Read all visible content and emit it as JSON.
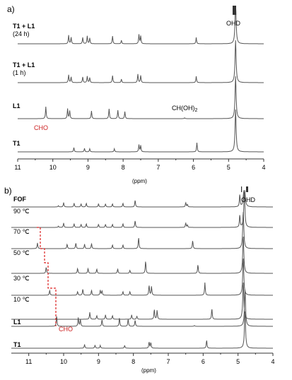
{
  "chart_data": [
    {
      "type": "line",
      "panel_label": "a)",
      "xlabel": "(ppm)",
      "xlim": [
        11,
        4
      ],
      "x_reversed": true,
      "xticks": [
        11,
        10,
        9,
        8,
        7,
        6,
        5,
        4
      ],
      "tick_labels": [
        "11",
        "10",
        "9",
        "8",
        "7",
        "6",
        "5",
        "4"
      ],
      "series": [
        {
          "name": "T1 + L1",
          "name2": "(24 h)",
          "baseline_note": "",
          "peaks": [
            {
              "x": 9.55,
              "h": 0.6
            },
            {
              "x": 9.48,
              "h": 0.45
            },
            {
              "x": 9.15,
              "h": 0.45
            },
            {
              "x": 9.02,
              "h": 0.55
            },
            {
              "x": 8.95,
              "h": 0.4
            },
            {
              "x": 8.3,
              "h": 0.55
            },
            {
              "x": 8.05,
              "h": 0.25
            },
            {
              "x": 7.55,
              "h": 0.65
            },
            {
              "x": 7.5,
              "h": 0.55
            },
            {
              "x": 5.92,
              "h": 0.45
            },
            {
              "x": 4.8,
              "h": 3.0
            }
          ]
        },
        {
          "name": "T1 + L1",
          "name2": "(1 h)",
          "peaks": [
            {
              "x": 9.55,
              "h": 0.55
            },
            {
              "x": 9.48,
              "h": 0.4
            },
            {
              "x": 9.15,
              "h": 0.4
            },
            {
              "x": 9.02,
              "h": 0.45
            },
            {
              "x": 8.95,
              "h": 0.35
            },
            {
              "x": 8.3,
              "h": 0.5
            },
            {
              "x": 8.05,
              "h": 0.25
            },
            {
              "x": 7.58,
              "h": 0.6
            },
            {
              "x": 7.5,
              "h": 0.5
            },
            {
              "x": 5.92,
              "h": 0.45
            },
            {
              "x": 4.8,
              "h": 3.0
            }
          ]
        },
        {
          "name": "L1",
          "name2": "",
          "peaks": [
            {
              "x": 10.2,
              "h": 0.85
            },
            {
              "x": 9.58,
              "h": 0.7
            },
            {
              "x": 9.52,
              "h": 0.55
            },
            {
              "x": 8.9,
              "h": 0.55
            },
            {
              "x": 8.4,
              "h": 0.7
            },
            {
              "x": 8.15,
              "h": 0.6
            },
            {
              "x": 7.95,
              "h": 0.5
            },
            {
              "x": 6.25,
              "h": 0.06
            },
            {
              "x": 4.8,
              "h": 3.0
            }
          ]
        },
        {
          "name": "T1",
          "name2": "",
          "peaks": [
            {
              "x": 9.4,
              "h": 0.3
            },
            {
              "x": 9.1,
              "h": 0.25
            },
            {
              "x": 8.95,
              "h": 0.22
            },
            {
              "x": 8.25,
              "h": 0.22
            },
            {
              "x": 7.55,
              "h": 0.5
            },
            {
              "x": 7.5,
              "h": 0.45
            },
            {
              "x": 5.9,
              "h": 0.65
            },
            {
              "x": 4.8,
              "h": 3.0
            }
          ]
        }
      ],
      "annotations": [
        {
          "text": "CHO",
          "color": "#cc2222"
        },
        {
          "text": "CH(OH)",
          "sub": "2"
        },
        {
          "text": "OHD"
        }
      ]
    },
    {
      "type": "line",
      "panel_label": "b)",
      "xlabel": "(ppm)",
      "xlim": [
        11.5,
        4
      ],
      "x_reversed": true,
      "xticks": [
        11,
        10,
        9,
        8,
        7,
        6,
        5,
        4
      ],
      "tick_labels": [
        "11",
        "10",
        "9",
        "8",
        "7",
        "6",
        "5",
        "4"
      ],
      "series": [
        {
          "name": "FOF",
          "name2": "",
          "peaks": [
            {
              "x": 10.15,
              "h": 0.1
            },
            {
              "x": 10.0,
              "h": 0.35
            },
            {
              "x": 9.7,
              "h": 0.3
            },
            {
              "x": 9.5,
              "h": 0.25
            },
            {
              "x": 9.35,
              "h": 0.3
            },
            {
              "x": 9.0,
              "h": 0.25
            },
            {
              "x": 8.8,
              "h": 0.25
            },
            {
              "x": 8.6,
              "h": 0.25
            },
            {
              "x": 8.3,
              "h": 0.3
            },
            {
              "x": 7.95,
              "h": 0.55
            },
            {
              "x": 6.5,
              "h": 0.35
            },
            {
              "x": 6.45,
              "h": 0.2
            },
            {
              "x": 4.95,
              "h": 1.0
            },
            {
              "x": 4.82,
              "h": 3.0
            }
          ]
        },
        {
          "name": "90 ℃",
          "name2": "",
          "peaks": [
            {
              "x": 10.15,
              "h": 0.1
            },
            {
              "x": 10.0,
              "h": 0.35
            },
            {
              "x": 9.7,
              "h": 0.3
            },
            {
              "x": 9.5,
              "h": 0.25
            },
            {
              "x": 9.35,
              "h": 0.3
            },
            {
              "x": 9.0,
              "h": 0.25
            },
            {
              "x": 8.8,
              "h": 0.25
            },
            {
              "x": 8.6,
              "h": 0.25
            },
            {
              "x": 8.3,
              "h": 0.3
            },
            {
              "x": 7.95,
              "h": 0.55
            },
            {
              "x": 6.5,
              "h": 0.35
            },
            {
              "x": 6.45,
              "h": 0.2
            },
            {
              "x": 4.95,
              "h": 1.0
            },
            {
              "x": 4.82,
              "h": 3.0
            }
          ]
        },
        {
          "name": "70 ℃",
          "name2": "",
          "peaks": [
            {
              "x": 10.75,
              "h": 0.45
            },
            {
              "x": 9.9,
              "h": 0.35
            },
            {
              "x": 9.65,
              "h": 0.45
            },
            {
              "x": 9.4,
              "h": 0.35
            },
            {
              "x": 9.2,
              "h": 0.4
            },
            {
              "x": 8.6,
              "h": 0.3
            },
            {
              "x": 8.3,
              "h": 0.3
            },
            {
              "x": 7.85,
              "h": 0.9
            },
            {
              "x": 6.3,
              "h": 0.65
            },
            {
              "x": 4.85,
              "h": 3.0
            }
          ]
        },
        {
          "name": "50 ℃",
          "name2": "",
          "peaks": [
            {
              "x": 10.5,
              "h": 0.5
            },
            {
              "x": 9.6,
              "h": 0.4
            },
            {
              "x": 9.3,
              "h": 0.4
            },
            {
              "x": 9.05,
              "h": 0.35
            },
            {
              "x": 8.45,
              "h": 0.35
            },
            {
              "x": 8.1,
              "h": 0.25
            },
            {
              "x": 7.65,
              "h": 1.0
            },
            {
              "x": 6.15,
              "h": 0.7
            },
            {
              "x": 4.85,
              "h": 3.0
            }
          ]
        },
        {
          "name": "30 ℃",
          "name2": "",
          "peaks": [
            {
              "x": 10.4,
              "h": 0.4
            },
            {
              "x": 9.6,
              "h": 0.3
            },
            {
              "x": 9.45,
              "h": 0.5
            },
            {
              "x": 9.2,
              "h": 0.4
            },
            {
              "x": 8.95,
              "h": 0.4
            },
            {
              "x": 8.9,
              "h": 0.35
            },
            {
              "x": 8.3,
              "h": 0.3
            },
            {
              "x": 8.1,
              "h": 0.3
            },
            {
              "x": 7.55,
              "h": 0.8
            },
            {
              "x": 7.48,
              "h": 0.7
            },
            {
              "x": 5.95,
              "h": 1.0
            },
            {
              "x": 4.85,
              "h": 3.0
            }
          ]
        },
        {
          "name": "10 ℃",
          "name2": "",
          "peaks": [
            {
              "x": 9.25,
              "h": 0.55
            },
            {
              "x": 9.05,
              "h": 0.3
            },
            {
              "x": 8.8,
              "h": 0.35
            },
            {
              "x": 8.6,
              "h": 0.3
            },
            {
              "x": 8.05,
              "h": 0.35
            },
            {
              "x": 7.9,
              "h": 0.25
            },
            {
              "x": 7.4,
              "h": 0.8
            },
            {
              "x": 7.32,
              "h": 0.7
            },
            {
              "x": 5.75,
              "h": 0.85
            },
            {
              "x": 4.85,
              "h": 3.0
            }
          ]
        },
        {
          "name": "L1",
          "name2": "",
          "peaks": [
            {
              "x": 10.2,
              "h": 0.85
            },
            {
              "x": 9.58,
              "h": 0.7
            },
            {
              "x": 9.52,
              "h": 0.55
            },
            {
              "x": 8.9,
              "h": 0.55
            },
            {
              "x": 8.4,
              "h": 0.7
            },
            {
              "x": 8.15,
              "h": 0.6
            },
            {
              "x": 7.95,
              "h": 0.5
            },
            {
              "x": 6.25,
              "h": 0.06
            },
            {
              "x": 4.8,
              "h": 3.0
            }
          ]
        },
        {
          "name": "T1",
          "name2": "",
          "peaks": [
            {
              "x": 9.4,
              "h": 0.3
            },
            {
              "x": 9.1,
              "h": 0.25
            },
            {
              "x": 8.95,
              "h": 0.22
            },
            {
              "x": 8.25,
              "h": 0.22
            },
            {
              "x": 7.55,
              "h": 0.5
            },
            {
              "x": 7.5,
              "h": 0.45
            },
            {
              "x": 5.9,
              "h": 0.65
            },
            {
              "x": 4.8,
              "h": 3.0
            }
          ]
        }
      ],
      "annotations": [
        {
          "text": "CHO",
          "color": "#cc2222"
        },
        {
          "text": "OHD"
        }
      ]
    }
  ]
}
